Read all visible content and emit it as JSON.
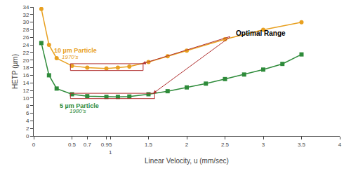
{
  "chart_data": {
    "type": "line",
    "xlabel": "Linear Velocity, u (mm/sec)",
    "ylabel": "HETP (µm)",
    "xlim": [
      0,
      4
    ],
    "ylim": [
      0,
      34
    ],
    "xticks": [
      0,
      0.5,
      0.7,
      0.95,
      1,
      1.5,
      2,
      2.5,
      3,
      3.5,
      4
    ],
    "yticks": [
      0,
      2,
      4,
      6,
      8,
      10,
      12,
      14,
      16,
      18,
      20,
      22,
      24,
      26,
      28,
      30,
      32,
      34
    ],
    "grid": false,
    "series": [
      {
        "color": "#E8A020",
        "marker": "circle",
        "x": [
          0.1,
          0.2,
          0.3,
          0.5,
          0.7,
          0.95,
          1.1,
          1.25,
          1.5,
          1.75,
          2.0,
          2.5,
          3.0,
          3.5
        ],
        "values": [
          33.5,
          24.0,
          20.5,
          18.5,
          18.0,
          17.8,
          18.0,
          18.3,
          19.5,
          21.0,
          22.5,
          25.5,
          28.0,
          30.0
        ],
        "label": {
          "text": "10 µm Particle",
          "x": 0.25,
          "y": 22.5
        },
        "sublabel": {
          "text": "1970’s",
          "x": 0.35,
          "y": 20.8
        }
      },
      {
        "color": "#2E8B3A",
        "marker": "square",
        "x": [
          0.1,
          0.2,
          0.3,
          0.5,
          0.7,
          0.95,
          1.1,
          1.25,
          1.5,
          1.75,
          2.0,
          2.25,
          2.5,
          2.75,
          3.0,
          3.25,
          3.5
        ],
        "values": [
          24.5,
          16.0,
          12.5,
          11.0,
          10.5,
          10.3,
          10.3,
          10.4,
          11.0,
          11.8,
          12.8,
          13.8,
          15.0,
          16.2,
          17.5,
          19.0,
          21.5
        ],
        "label": {
          "text": "5 µm Particle",
          "x": 0.32,
          "y": 8.0
        },
        "sublabel": {
          "text": "1980’s",
          "x": 0.45,
          "y": 6.5
        }
      }
    ],
    "shapes": [
      {
        "x": 0.48,
        "y": 17.25,
        "width": 0.95,
        "height": 1.8,
        "color": "#B03030"
      },
      {
        "x": 0.48,
        "y": 9.85,
        "width": 1.1,
        "height": 1.4,
        "color": "#B03030"
      }
    ],
    "annotations": [
      {
        "text": "Optimal Range",
        "x": 2.62,
        "y": 27.0
      }
    ],
    "arrows": [
      {
        "from": [
          2.58,
          26.3
        ],
        "to": [
          1.42,
          19.05
        ],
        "color": "#B03030"
      },
      {
        "from": [
          2.58,
          26.3
        ],
        "to": [
          1.56,
          11.2
        ],
        "color": "#B03030"
      }
    ]
  }
}
